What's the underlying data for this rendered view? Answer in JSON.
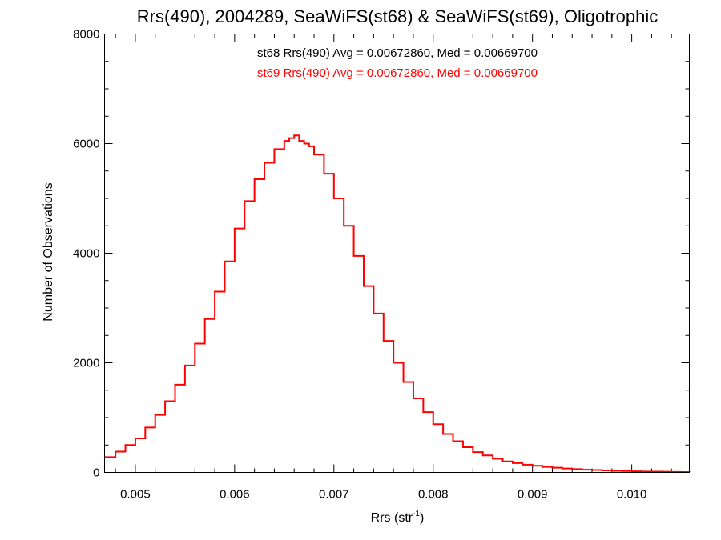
{
  "chart_data": {
    "type": "line",
    "style": "step",
    "title": "Rrs(490), 2004289, SeaWiFS(st68) & SeaWiFS(st69), Oligotrophic",
    "xlabel_base": "Rrs (str",
    "xlabel_sup": "-1",
    "xlabel_close": ")",
    "ylabel": "Number of Observations",
    "xlim": [
      0.00469,
      0.01058
    ],
    "ylim": [
      0,
      8000
    ],
    "x_ticks": [
      0.005,
      0.006,
      0.007,
      0.008,
      0.009,
      0.01
    ],
    "x_tick_labels": [
      "0.005",
      "0.006",
      "0.007",
      "0.008",
      "0.009",
      "0.010"
    ],
    "y_ticks": [
      0,
      2000,
      4000,
      6000,
      8000
    ],
    "y_tick_labels": [
      "0",
      "2000",
      "4000",
      "6000",
      "8000"
    ],
    "grid": false,
    "annotations": [
      {
        "text": "st68 Rrs(490) Avg = 0.00672860, Med = 0.00669700",
        "color": "#000000"
      },
      {
        "text": "st69 Rrs(490) Avg = 0.00672860, Med = 0.00669700",
        "color": "#ff0000"
      }
    ],
    "series": [
      {
        "color": "#ff0000",
        "x": [
          0.00469,
          0.0048,
          0.0049,
          0.005,
          0.0051,
          0.0052,
          0.0053,
          0.0054,
          0.0055,
          0.0056,
          0.0057,
          0.0058,
          0.0059,
          0.006,
          0.0061,
          0.0062,
          0.0063,
          0.0064,
          0.0065,
          0.00655,
          0.0066,
          0.00665,
          0.0067,
          0.00675,
          0.0068,
          0.0069,
          0.007,
          0.0071,
          0.0072,
          0.0073,
          0.0074,
          0.0075,
          0.0076,
          0.0077,
          0.0078,
          0.0079,
          0.008,
          0.0081,
          0.0082,
          0.0083,
          0.0084,
          0.0085,
          0.0086,
          0.0087,
          0.0088,
          0.0089,
          0.009,
          0.0091,
          0.0092,
          0.0093,
          0.0094,
          0.0095,
          0.0096,
          0.0097,
          0.0098,
          0.0099,
          0.01,
          0.0101,
          0.0102,
          0.0103,
          0.0104,
          0.0105,
          0.01058
        ],
        "values": [
          280,
          380,
          500,
          620,
          820,
          1050,
          1300,
          1600,
          1950,
          2350,
          2800,
          3300,
          3850,
          4450,
          4950,
          5350,
          5650,
          5900,
          6050,
          6100,
          6150,
          6050,
          6000,
          5950,
          5800,
          5450,
          5000,
          4500,
          3950,
          3400,
          2900,
          2400,
          2000,
          1650,
          1350,
          1100,
          880,
          700,
          570,
          460,
          370,
          310,
          250,
          200,
          170,
          140,
          120,
          100,
          85,
          72,
          60,
          50,
          43,
          36,
          30,
          25,
          20,
          17,
          14,
          12,
          10,
          8,
          7
        ]
      }
    ]
  }
}
